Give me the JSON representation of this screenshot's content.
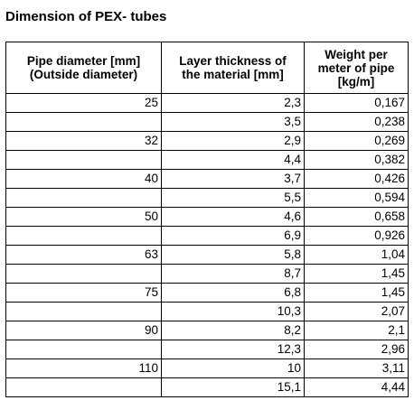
{
  "title": "Dimension of PEX- tubes",
  "table": {
    "headers": [
      "Pipe diameter [mm]\n(Outside diameter)",
      "Layer thickness of\nthe material [mm]",
      "Weight per\nmeter of pipe\n[kg/m]"
    ],
    "rows": [
      [
        "25",
        "2,3",
        "0,167"
      ],
      [
        "",
        "3,5",
        "0,238"
      ],
      [
        "32",
        "2,9",
        "0,269"
      ],
      [
        "",
        "4,4",
        "0,382"
      ],
      [
        "40",
        "3,7",
        "0,426"
      ],
      [
        "",
        "5,5",
        "0,594"
      ],
      [
        "50",
        "4,6",
        "0,658"
      ],
      [
        "",
        "6,9",
        "0,926"
      ],
      [
        "63",
        "5,8",
        "1,04"
      ],
      [
        "",
        "8,7",
        "1,45"
      ],
      [
        "75",
        "6,8",
        "1,45"
      ],
      [
        "",
        "10,3",
        "2,07"
      ],
      [
        "90",
        "8,2",
        "2,1"
      ],
      [
        "",
        "12,3",
        "2,96"
      ],
      [
        "110",
        "10",
        "3,11"
      ],
      [
        "",
        "15,1",
        "4,44"
      ]
    ]
  }
}
